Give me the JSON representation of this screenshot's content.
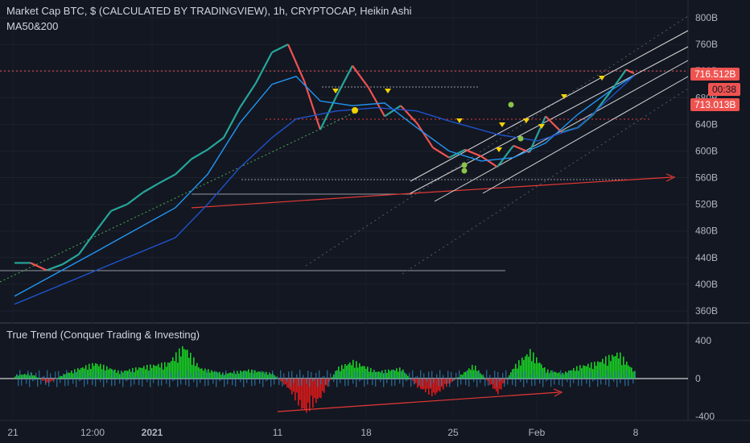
{
  "header": {
    "title": "Market Cap BTC, $ (CALCULATED BY TRADINGVIEW), 1h, CRYPTOCAP, Heikin Ashi",
    "indicator": "MA50&200",
    "lower_indicator": "True Trend (Conquer Trading & Investing)"
  },
  "price_tags": {
    "last": "716.512B",
    "countdown": "00:38",
    "ma": "713.013B"
  },
  "colors": {
    "background": "#131722",
    "bull": "#26a69a",
    "bear": "#ef5350",
    "trendline": "#e53935",
    "ma50": "#2196f3",
    "ma200": "#1e53c9",
    "hist_green": "#18d424",
    "hist_red": "#e01919",
    "hist_blue": "#2f8fc4",
    "marker_yellow": "#f5d300",
    "marker_green": "#8bc34a"
  },
  "chart_data": [
    {
      "type": "line",
      "title": "Market Cap BTC, $ (CALCULATED BY TRADINGVIEW), 1h, CRYPTOCAP, Heikin Ashi",
      "xlabel": "",
      "ylabel": "",
      "x_ticks": [
        "21",
        "12:00",
        "2021",
        "11",
        "18",
        "25",
        "Feb",
        "8"
      ],
      "y_ticks": [
        "360B",
        "400B",
        "440B",
        "480B",
        "520B",
        "560B",
        "600B",
        "640B",
        "680B",
        "720B",
        "760B",
        "800B"
      ],
      "ylim": [
        340,
        810
      ],
      "grid": true,
      "series": [
        {
          "name": "Market Cap BTC",
          "x": [
            0,
            20,
            40,
            60,
            80,
            100,
            120,
            140,
            160,
            180,
            200,
            220,
            240,
            260,
            280,
            300,
            320,
            340,
            360,
            380,
            400,
            420,
            440,
            460,
            480,
            500,
            520,
            540,
            560,
            580,
            600,
            620,
            640,
            660,
            680,
            700,
            720,
            740,
            760,
            770
          ],
          "values": [
            432,
            432,
            421,
            430,
            445,
            478,
            510,
            520,
            538,
            552,
            565,
            588,
            602,
            620,
            665,
            702,
            748,
            760,
            705,
            632,
            682,
            728,
            695,
            652,
            668,
            642,
            605,
            590,
            602,
            592,
            576,
            608,
            598,
            652,
            628,
            635,
            656,
            688,
            722,
            716.5
          ]
        },
        {
          "name": "MA50",
          "x": [
            0,
            100,
            200,
            240,
            280,
            320,
            350,
            380,
            420,
            460,
            500,
            540,
            580,
            620,
            660,
            700,
            740,
            770
          ],
          "values": [
            382,
            448,
            515,
            565,
            642,
            700,
            712,
            675,
            668,
            672,
            635,
            600,
            585,
            590,
            612,
            655,
            690,
            713
          ]
        },
        {
          "name": "MA200",
          "x": [
            0,
            100,
            200,
            240,
            280,
            320,
            350,
            400,
            450,
            500,
            540,
            600,
            650,
            700,
            770
          ],
          "values": [
            370,
            420,
            470,
            520,
            575,
            620,
            648,
            660,
            665,
            660,
            645,
            625,
            615,
            635,
            713
          ]
        }
      ]
    },
    {
      "type": "bar",
      "title": "True Trend (Conquer Trading & Investing)",
      "y_ticks": [
        "400",
        "0",
        "-400"
      ],
      "ylim": [
        -440,
        440
      ],
      "x_ticks": [
        "21",
        "12:00",
        "2021",
        "11",
        "18",
        "25",
        "Feb",
        "8"
      ],
      "series": [
        {
          "name": "True Trend",
          "x": [
            0,
            20,
            40,
            60,
            80,
            100,
            130,
            160,
            190,
            210,
            230,
            260,
            290,
            320,
            340,
            360,
            380,
            400,
            420,
            450,
            480,
            500,
            520,
            540,
            570,
            600,
            620,
            640,
            660,
            680,
            700,
            720,
            750,
            770
          ],
          "values": [
            40,
            60,
            -60,
            50,
            120,
            180,
            80,
            140,
            180,
            380,
            120,
            60,
            100,
            60,
            -120,
            -400,
            -220,
            120,
            200,
            80,
            120,
            -100,
            -200,
            -60,
            160,
            -180,
            140,
            320,
            100,
            60,
            140,
            180,
            300,
            80
          ]
        }
      ]
    }
  ]
}
